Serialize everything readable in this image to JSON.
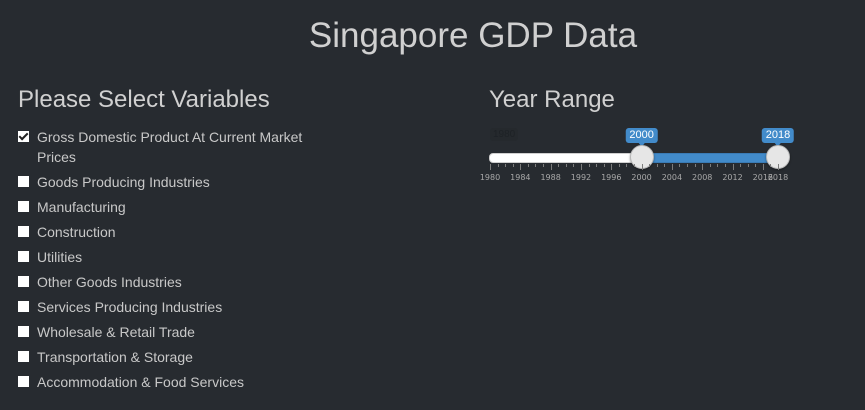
{
  "title": "Singapore GDP Data",
  "variables": {
    "heading": "Please Select Variables",
    "items": [
      {
        "label": "Gross Domestic Product At Current Market Prices",
        "checked": true
      },
      {
        "label": "Goods Producing Industries",
        "checked": false
      },
      {
        "label": "Manufacturing",
        "checked": false
      },
      {
        "label": "Construction",
        "checked": false
      },
      {
        "label": "Utilities",
        "checked": false
      },
      {
        "label": "Other Goods Industries",
        "checked": false
      },
      {
        "label": "Services Producing Industries",
        "checked": false
      },
      {
        "label": "Wholesale & Retail Trade",
        "checked": false
      },
      {
        "label": "Transportation & Storage",
        "checked": false
      },
      {
        "label": "Accommodation & Food Services",
        "checked": false
      }
    ]
  },
  "year_range": {
    "heading": "Year Range",
    "min": 1980,
    "max": 2018,
    "min_label": "1980",
    "from": 2000,
    "to": 2018,
    "from_label": "2000",
    "to_label": "2018",
    "tick_labels": [
      "1980",
      "1984",
      "1988",
      "1992",
      "1996",
      "2000",
      "2004",
      "2008",
      "2012",
      "2016",
      "2018"
    ],
    "colors": {
      "range": "#428bca",
      "track": "#ffffff"
    }
  }
}
